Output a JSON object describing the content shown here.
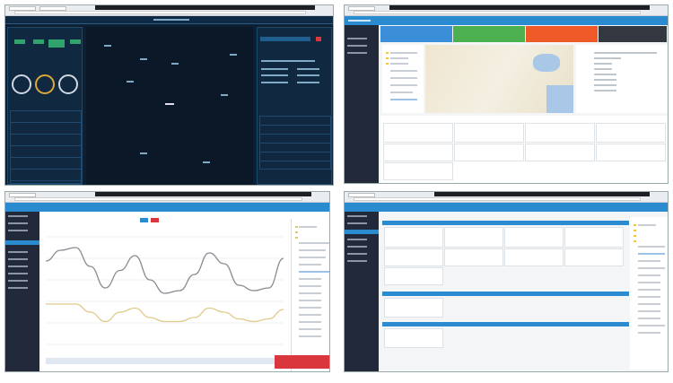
{
  "colors": {
    "dashboard_bg": "#0d1f33",
    "header_blue": "#2a8bd0",
    "sidebar_dark": "#22293a",
    "kpi_green": "#2fa36b",
    "gauge_gold": "#d9a93a",
    "alert_red": "#d9363e"
  },
  "summary_cards": [
    {
      "color": "#3a8fd8",
      "icon": "monitor-icon"
    },
    {
      "color": "#4caf50",
      "icon": "chart-icon"
    },
    {
      "color": "#f05a28",
      "icon": "warning-icon"
    },
    {
      "color": "#333840",
      "icon": "search-icon"
    }
  ],
  "chart_data": {
    "type": "line",
    "series": [
      {
        "values": [
          62,
          70,
          72,
          58,
          42,
          55,
          66,
          48,
          38,
          40,
          52,
          68,
          60,
          44,
          40,
          42,
          64
        ]
      },
      {
        "values": [
          30,
          30,
          30,
          24,
          17,
          24,
          27,
          20,
          17,
          17,
          20,
          27,
          24,
          19,
          17,
          19,
          26
        ]
      }
    ],
    "grid": true
  }
}
